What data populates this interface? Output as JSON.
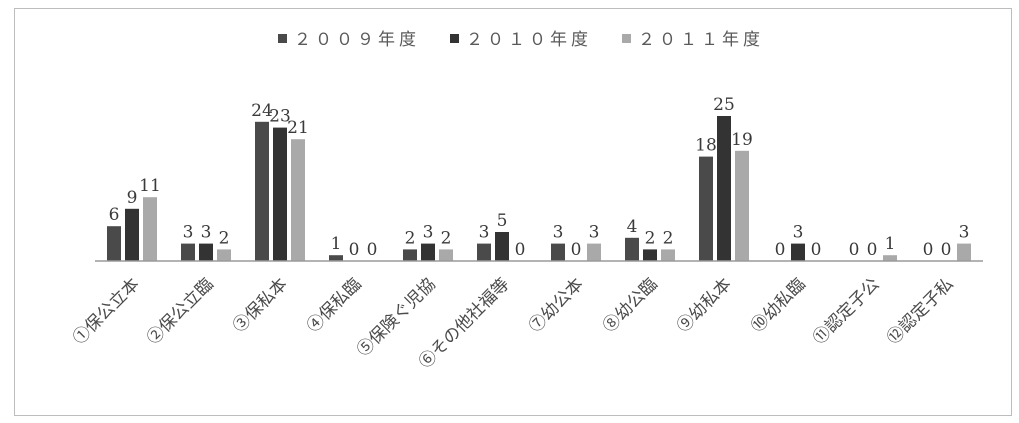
{
  "chart_data": {
    "type": "bar",
    "categories": [
      "①保公立本",
      "②保公立臨",
      "③保私本",
      "④保私臨",
      "⑤保険ぐ児協",
      "⑥その他社福等",
      "⑦幼公本",
      "⑧幼公臨",
      "⑨幼私本",
      "⑩幼私臨",
      "⑪認定子公",
      "⑫認定子私"
    ],
    "series": [
      {
        "name": "２００９年度",
        "color": "#4a4a4a",
        "values": [
          6,
          3,
          24,
          1,
          2,
          3,
          3,
          4,
          18,
          0,
          0,
          0
        ],
        "labels": [
          "6",
          "3",
          "24",
          "1",
          "2",
          "3",
          "3",
          "4",
          "18",
          "0",
          "0",
          "0"
        ]
      },
      {
        "name": "２０１０年度",
        "color": "#333333",
        "values": [
          9,
          3,
          23,
          0,
          3,
          5,
          0,
          2,
          25,
          3,
          0,
          0
        ],
        "labels": [
          "9",
          "3",
          "23",
          "0",
          "3",
          "5",
          "0",
          "2",
          "25",
          "3",
          "0",
          "0"
        ]
      },
      {
        "name": "２０１１年度",
        "color": "#a9a9a9",
        "values": [
          11,
          2,
          21,
          0,
          2,
          0,
          3,
          2,
          19,
          0,
          1,
          3
        ],
        "labels": [
          "11",
          "2",
          "21",
          "0",
          "2",
          "0",
          "3",
          "2",
          "19",
          "0",
          "1",
          "3"
        ]
      }
    ],
    "title": "",
    "xlabel": "",
    "ylabel": "",
    "ylim": [
      0,
      25
    ],
    "grid": false,
    "legend_position": "top"
  }
}
